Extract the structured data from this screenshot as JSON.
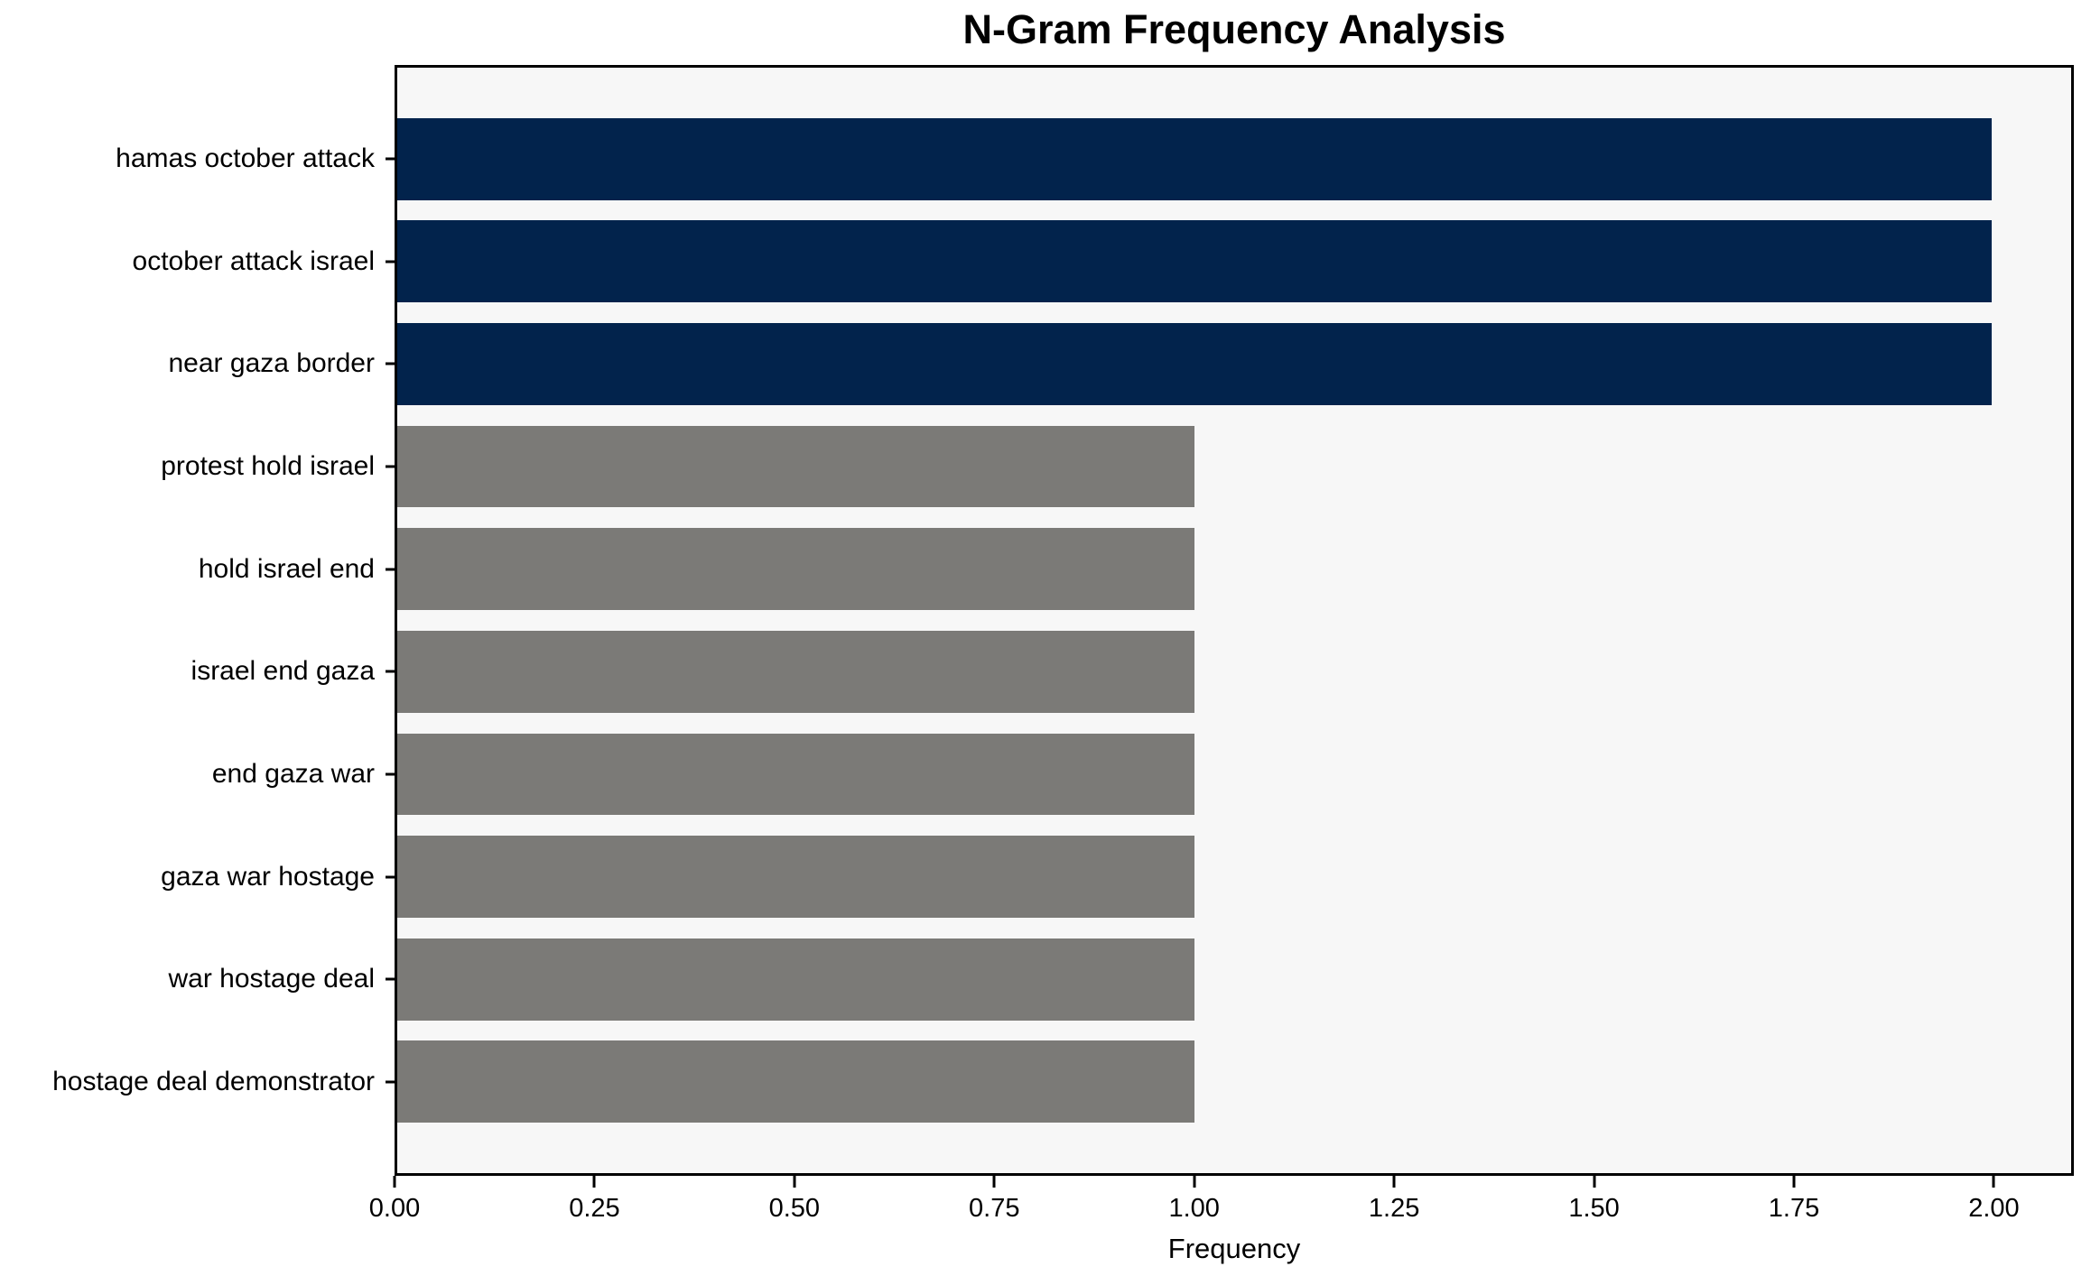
{
  "chart_data": {
    "type": "bar",
    "orientation": "horizontal",
    "title": "N-Gram Frequency Analysis",
    "xlabel": "Frequency",
    "ylabel": "",
    "categories": [
      "hamas october attack",
      "october attack israel",
      "near gaza border",
      "protest hold israel",
      "hold israel end",
      "israel end gaza",
      "end gaza war",
      "gaza war hostage",
      "war hostage deal",
      "hostage deal demonstrator"
    ],
    "values": [
      2,
      2,
      2,
      1,
      1,
      1,
      1,
      1,
      1,
      1
    ],
    "bar_colors": [
      "#02234c",
      "#02234c",
      "#02234c",
      "#7b7a77",
      "#7b7a77",
      "#7b7a77",
      "#7b7a77",
      "#7b7a77",
      "#7b7a77",
      "#7b7a77"
    ],
    "xticks": [
      0.0,
      0.25,
      0.5,
      0.75,
      1.0,
      1.25,
      1.5,
      1.75,
      2.0
    ],
    "xtick_labels": [
      "0.00",
      "0.25",
      "0.50",
      "0.75",
      "1.00",
      "1.25",
      "1.50",
      "1.75",
      "2.00"
    ],
    "xlim": [
      0,
      2.1
    ],
    "grid": false,
    "legend": false,
    "colors": {
      "bar_primary": "#02234c",
      "bar_secondary": "#7b7a77",
      "plot_background": "#f7f7f7",
      "figure_background": "#ffffff",
      "axis": "#000000",
      "text": "#000000"
    }
  }
}
